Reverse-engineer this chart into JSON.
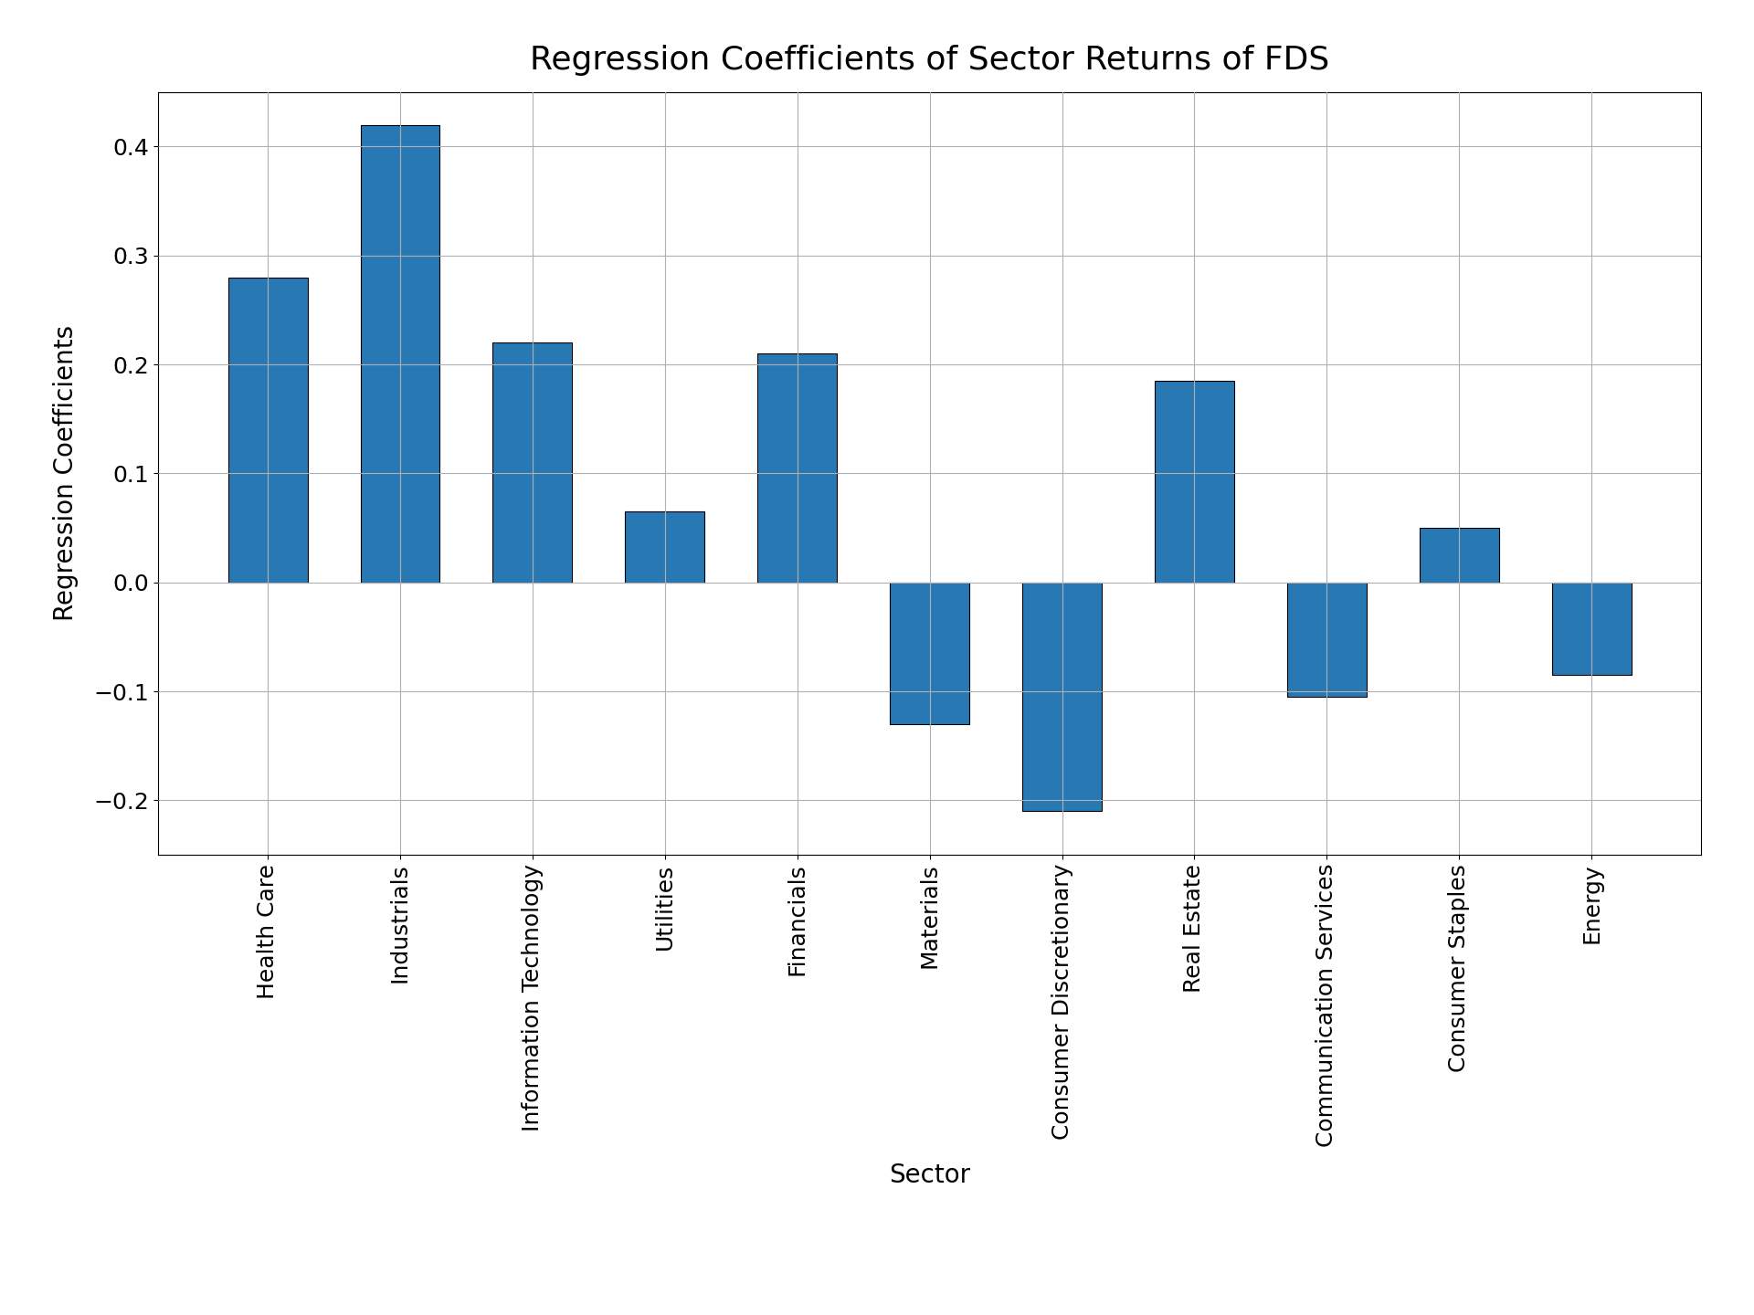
{
  "title": "Regression Coefficients of Sector Returns of FDS",
  "xlabel": "Sector",
  "ylabel": "Regression Coefficients",
  "categories": [
    "Health Care",
    "Industrials",
    "Information Technology",
    "Utilities",
    "Financials",
    "Materials",
    "Consumer Discretionary",
    "Real Estate",
    "Communication Services",
    "Consumer Staples",
    "Energy"
  ],
  "values": [
    0.28,
    0.42,
    0.22,
    0.065,
    0.21,
    -0.13,
    -0.21,
    0.185,
    -0.105,
    0.05,
    -0.085
  ],
  "bar_color": "#2878b4",
  "bar_edgecolor": "#000000",
  "bar_linewidth": 0.8,
  "ylim": [
    -0.25,
    0.45
  ],
  "yticks": [
    -0.2,
    -0.1,
    0.0,
    0.1,
    0.2,
    0.3,
    0.4
  ],
  "title_fontsize": 26,
  "label_fontsize": 20,
  "tick_fontsize": 18,
  "grid": true,
  "background_color": "#ffffff",
  "figsize": [
    19.2,
    14.4
  ],
  "dpi": 100
}
